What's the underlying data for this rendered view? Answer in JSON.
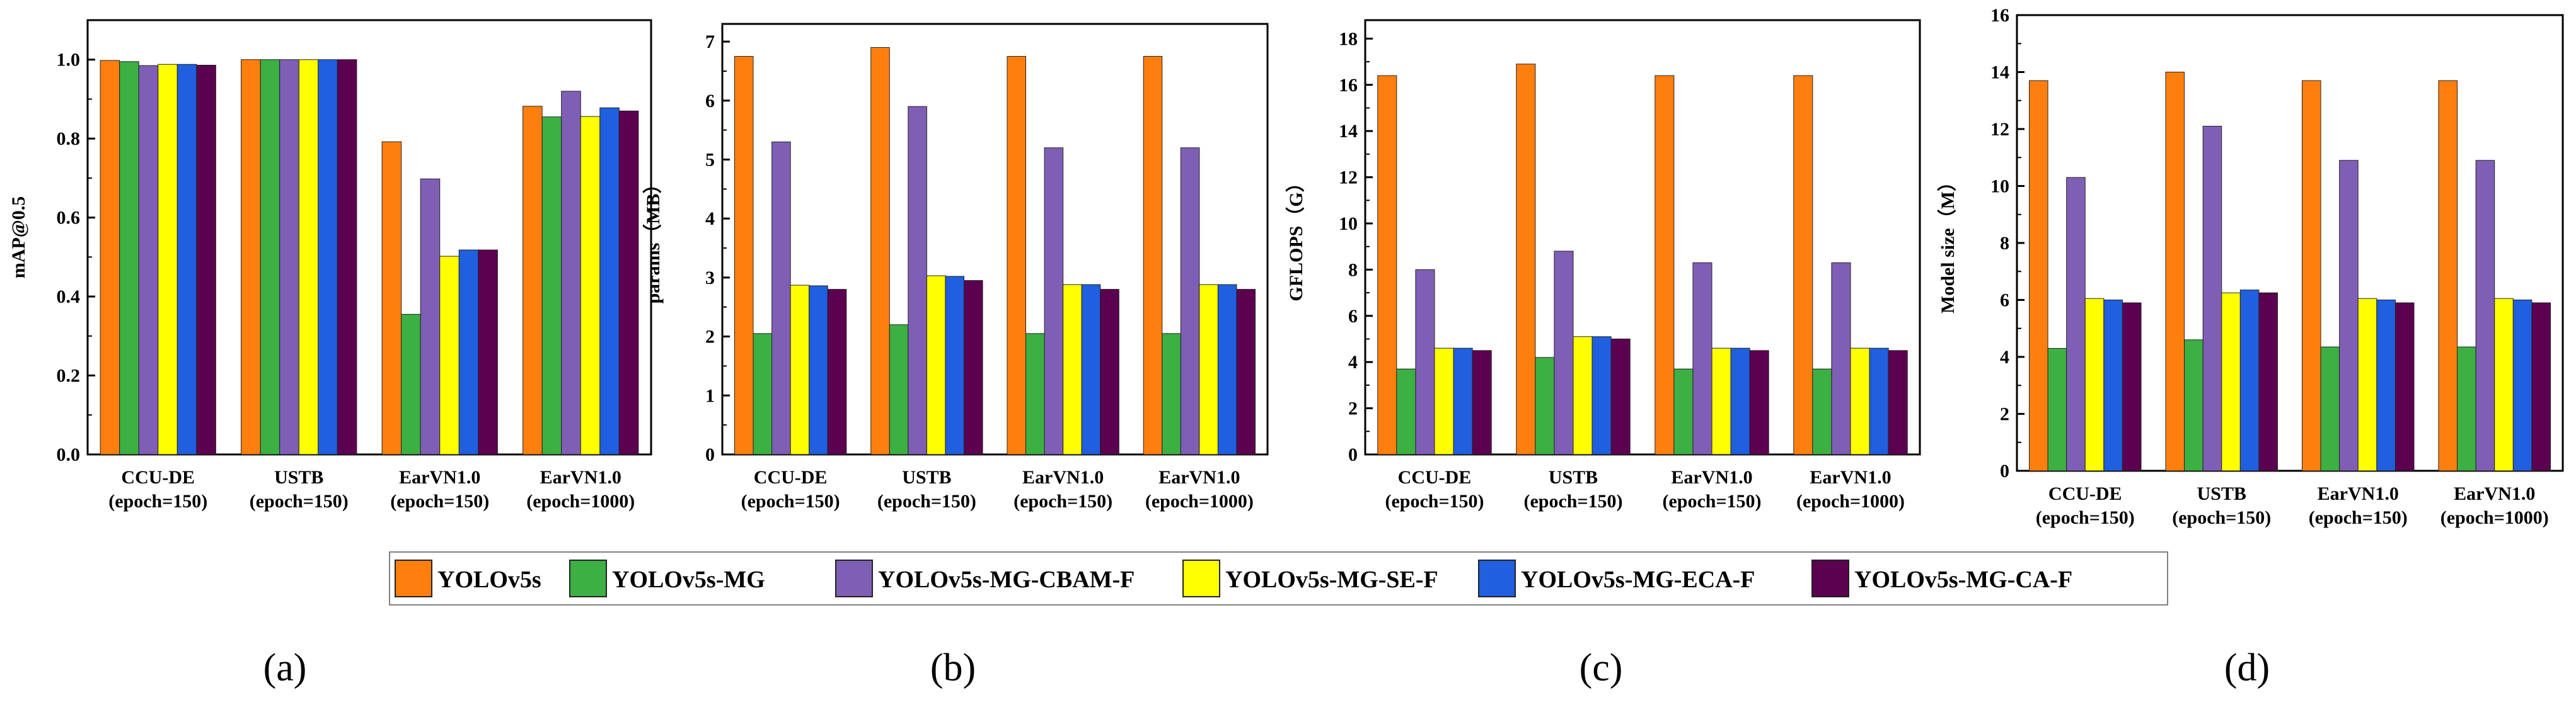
{
  "legend": [
    {
      "name": "YOLOv5s",
      "color": "#FF7F0E"
    },
    {
      "name": "YOLOv5s-MG",
      "color": "#3CB043"
    },
    {
      "name": "YOLOv5s-MG-CBAM-F",
      "color": "#7F5FB5"
    },
    {
      "name": "YOLOv5s-MG-SE-F",
      "color": "#FFFF00"
    },
    {
      "name": "YOLOv5s-MG-ECA-F",
      "color": "#1F5FE0"
    },
    {
      "name": "YOLOv5s-MG-CA-F",
      "color": "#5C0050"
    }
  ],
  "panel_letters": [
    "(a)",
    "(b)",
    "(c)",
    "(d)"
  ],
  "chart_data": [
    {
      "type": "bar",
      "ylabel": "mAP@0.5",
      "categories": [
        [
          "CCU-DE",
          "(epoch=150)"
        ],
        [
          "USTB",
          "(epoch=150)"
        ],
        [
          "EarVN1.0",
          "(epoch=150)"
        ],
        [
          "EarVN1.0",
          "(epoch=1000)"
        ]
      ],
      "ylim": [
        0,
        1.1
      ],
      "yticks": [
        "0.0",
        "0.2",
        "0.4",
        "0.6",
        "0.8",
        "1.0"
      ],
      "ytick_values": [
        0,
        0.2,
        0.4,
        0.6,
        0.8,
        1.0
      ],
      "series": [
        {
          "name": "YOLOv5s",
          "values": [
            0.998,
            1.0,
            0.792,
            0.882
          ]
        },
        {
          "name": "YOLOv5s-MG",
          "values": [
            0.995,
            1.0,
            0.355,
            0.855
          ]
        },
        {
          "name": "YOLOv5s-MG-CBAM-F",
          "values": [
            0.985,
            1.0,
            0.698,
            0.92
          ]
        },
        {
          "name": "YOLOv5s-MG-SE-F",
          "values": [
            0.988,
            1.0,
            0.502,
            0.856
          ]
        },
        {
          "name": "YOLOv5s-MG-ECA-F",
          "values": [
            0.988,
            1.0,
            0.518,
            0.878
          ]
        },
        {
          "name": "YOLOv5s-MG-CA-F",
          "values": [
            0.986,
            1.0,
            0.518,
            0.87
          ]
        }
      ]
    },
    {
      "type": "bar",
      "ylabel": "params（MB）",
      "categories": [
        [
          "CCU-DE",
          "(epoch=150)"
        ],
        [
          "USTB",
          "(epoch=150)"
        ],
        [
          "EarVN1.0",
          "(epoch=150)"
        ],
        [
          "EarVN1.0",
          "(epoch=1000)"
        ]
      ],
      "ylim": [
        0,
        7.3
      ],
      "yticks": [
        "0",
        "1",
        "2",
        "3",
        "4",
        "5",
        "6",
        "7"
      ],
      "ytick_values": [
        0,
        1,
        2,
        3,
        4,
        5,
        6,
        7
      ],
      "series": [
        {
          "name": "YOLOv5s",
          "values": [
            6.75,
            6.9,
            6.75,
            6.75
          ]
        },
        {
          "name": "YOLOv5s-MG",
          "values": [
            2.05,
            2.2,
            2.05,
            2.05
          ]
        },
        {
          "name": "YOLOv5s-MG-CBAM-F",
          "values": [
            5.3,
            5.9,
            5.2,
            5.2
          ]
        },
        {
          "name": "YOLOv5s-MG-SE-F",
          "values": [
            2.87,
            3.03,
            2.88,
            2.88
          ]
        },
        {
          "name": "YOLOv5s-MG-ECA-F",
          "values": [
            2.86,
            3.02,
            2.88,
            2.88
          ]
        },
        {
          "name": "YOLOv5s-MG-CA-F",
          "values": [
            2.8,
            2.95,
            2.8,
            2.8
          ]
        }
      ]
    },
    {
      "type": "bar",
      "ylabel": "GFLOPS（G）",
      "categories": [
        [
          "CCU-DE",
          "(epoch=150)"
        ],
        [
          "USTB",
          "(epoch=150)"
        ],
        [
          "EarVN1.0",
          "(epoch=150)"
        ],
        [
          "EarVN1.0",
          "(epoch=1000)"
        ]
      ],
      "ylim": [
        0,
        18.8
      ],
      "yticks": [
        "0",
        "2",
        "4",
        "6",
        "8",
        "10",
        "12",
        "14",
        "16",
        "18"
      ],
      "ytick_values": [
        0,
        2,
        4,
        6,
        8,
        10,
        12,
        14,
        16,
        18
      ],
      "series": [
        {
          "name": "YOLOv5s",
          "values": [
            16.4,
            16.9,
            16.4,
            16.4
          ]
        },
        {
          "name": "YOLOv5s-MG",
          "values": [
            3.7,
            4.2,
            3.7,
            3.7
          ]
        },
        {
          "name": "YOLOv5s-MG-CBAM-F",
          "values": [
            8.0,
            8.8,
            8.3,
            8.3
          ]
        },
        {
          "name": "YOLOv5s-MG-SE-F",
          "values": [
            4.6,
            5.1,
            4.6,
            4.6
          ]
        },
        {
          "name": "YOLOv5s-MG-ECA-F",
          "values": [
            4.6,
            5.1,
            4.6,
            4.6
          ]
        },
        {
          "name": "YOLOv5s-MG-CA-F",
          "values": [
            4.5,
            5.0,
            4.5,
            4.5
          ]
        }
      ]
    },
    {
      "type": "bar",
      "ylabel": "Model size（M）",
      "categories": [
        [
          "CCU-DE",
          "(epoch=150)"
        ],
        [
          "USTB",
          "(epoch=150)"
        ],
        [
          "EarVN1.0",
          "(epoch=150)"
        ],
        [
          "EarVN1.0",
          "(epoch=1000)"
        ]
      ],
      "ylim": [
        0,
        16
      ],
      "yticks": [
        "0",
        "2",
        "4",
        "6",
        "8",
        "10",
        "12",
        "14",
        "16"
      ],
      "ytick_values": [
        0,
        2,
        4,
        6,
        8,
        10,
        12,
        14,
        16
      ],
      "series": [
        {
          "name": "YOLOv5s",
          "values": [
            13.7,
            14.0,
            13.7,
            13.7
          ]
        },
        {
          "name": "YOLOv5s-MG",
          "values": [
            4.3,
            4.6,
            4.35,
            4.35
          ]
        },
        {
          "name": "YOLOv5s-MG-CBAM-F",
          "values": [
            10.3,
            12.1,
            10.9,
            10.9
          ]
        },
        {
          "name": "YOLOv5s-MG-SE-F",
          "values": [
            6.05,
            6.25,
            6.05,
            6.05
          ]
        },
        {
          "name": "YOLOv5s-MG-ECA-F",
          "values": [
            6.0,
            6.35,
            6.0,
            6.0
          ]
        },
        {
          "name": "YOLOv5s-MG-CA-F",
          "values": [
            5.9,
            6.25,
            5.9,
            5.9
          ]
        }
      ]
    }
  ]
}
